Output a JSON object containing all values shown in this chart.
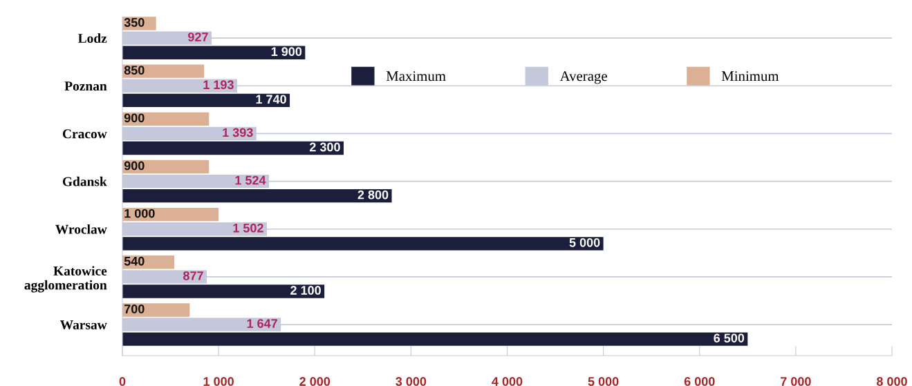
{
  "chart_data": {
    "type": "bar",
    "orientation": "horizontal",
    "categories": [
      "Lodz",
      "Poznan",
      "Cracow",
      "Gdansk",
      "Wroclaw",
      "Katowice\nagglomeration",
      "Warsaw"
    ],
    "series": [
      {
        "name": "Maximum",
        "color": "#1b1f3b",
        "values": [
          1900,
          1740,
          2300,
          2800,
          5000,
          2100,
          6500
        ],
        "value_labels": [
          "1 900",
          "1 740",
          "2 300",
          "2 800",
          "5 000",
          "2 100",
          "6 500"
        ]
      },
      {
        "name": "Average",
        "color": "#c5c8da",
        "values": [
          927,
          1193,
          1393,
          1524,
          1502,
          877,
          1647
        ],
        "value_labels": [
          "927",
          "1 193",
          "1 393",
          "1 524",
          "1 502",
          "877",
          "1 647"
        ]
      },
      {
        "name": "Minimum",
        "color": "#dcb095",
        "values": [
          350,
          850,
          900,
          900,
          1000,
          540,
          700
        ],
        "value_labels": [
          "350",
          "850",
          "900",
          "900",
          "1 000",
          "540",
          "700"
        ]
      }
    ],
    "xlim": [
      0,
      8000
    ],
    "xticks": [
      0,
      {
        "value": 1000,
        "label": "1 000"
      },
      {
        "value": 2000,
        "label": "2 000"
      },
      {
        "value": 3000,
        "label": "3 000"
      },
      {
        "value": 4000,
        "label": "4 000"
      },
      {
        "value": 5000,
        "label": "5 000"
      },
      {
        "value": 6000,
        "label": "6 000"
      },
      {
        "value": 7000,
        "label": "7 000"
      },
      {
        "value": 8000,
        "label": "8 000"
      }
    ],
    "grid": "y",
    "legend": "top right"
  }
}
